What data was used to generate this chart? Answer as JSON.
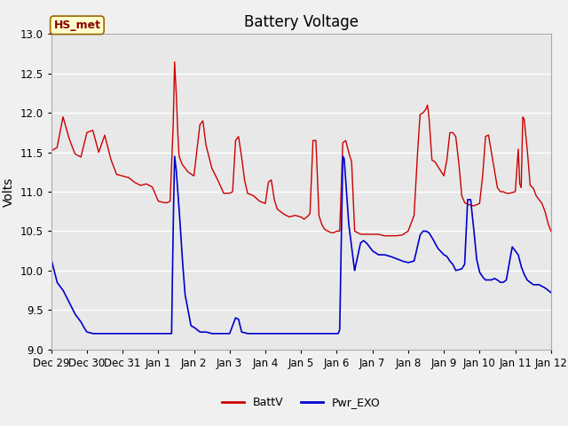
{
  "title": "Battery Voltage",
  "ylabel": "Volts",
  "ylim": [
    9.0,
    13.0
  ],
  "yticks": [
    9.0,
    9.5,
    10.0,
    10.5,
    11.0,
    11.5,
    12.0,
    12.5,
    13.0
  ],
  "xtick_labels": [
    "Dec 29",
    "Dec 30",
    "Dec 31",
    "Jan 1",
    "Jan 2",
    "Jan 3",
    "Jan 4",
    "Jan 5",
    "Jan 6",
    "Jan 7",
    "Jan 8",
    "Jan 9",
    "Jan 10",
    "Jan 11",
    "Jan 12"
  ],
  "fig_bg_color": "#f0f0f0",
  "plot_bg_color": "#e8e8e8",
  "grid_color": "#ffffff",
  "line_red_color": "#cc0000",
  "line_blue_color": "#0000cc",
  "legend_entries": [
    "BattV",
    "Pwr_EXO"
  ],
  "annotation_text": "HS_met",
  "annotation_bbox_facecolor": "#ffffcc",
  "annotation_bbox_edgecolor": "#996600",
  "title_fontsize": 12,
  "label_fontsize": 10,
  "tick_fontsize": 8.5,
  "figsize": [
    6.4,
    4.8
  ],
  "dpi": 100
}
